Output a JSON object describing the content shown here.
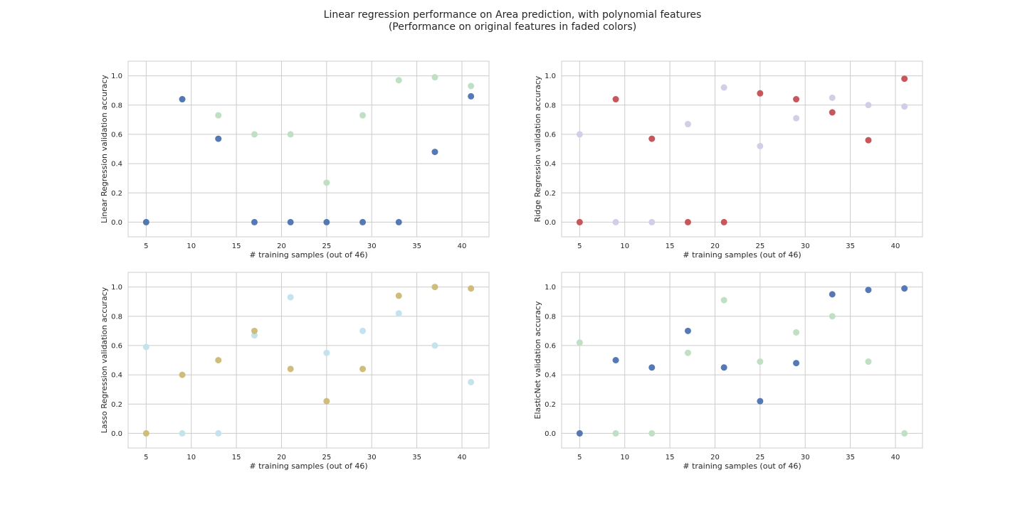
{
  "figure": {
    "title_line1": "Linear regression performance on Area prediction, with polynomial features",
    "title_line2": "(Performance on original features in faded colors)"
  },
  "chart_data": [
    {
      "type": "scatter",
      "xlabel": "# training samples (out of 46)",
      "ylabel": "Linear Regression validation accuracy",
      "xlim": [
        3,
        43
      ],
      "ylim": [
        -0.1,
        1.1
      ],
      "xticks": [
        5,
        10,
        15,
        20,
        25,
        30,
        35,
        40
      ],
      "yticks": [
        0.0,
        0.2,
        0.4,
        0.6,
        0.8,
        1.0
      ],
      "grid": true,
      "series": [
        {
          "role": "original features",
          "color": "#bfe0c2",
          "x": [
            5,
            9,
            13,
            17,
            21,
            25,
            29,
            33,
            37,
            41
          ],
          "y": [
            0.0,
            0.84,
            0.73,
            0.6,
            0.6,
            0.27,
            0.73,
            0.97,
            0.99,
            0.93
          ]
        },
        {
          "role": "polynomial features",
          "color": "#4c72b0",
          "x": [
            5,
            9,
            13,
            17,
            21,
            25,
            29,
            33,
            37,
            41
          ],
          "y": [
            0.0,
            0.84,
            0.57,
            0.0,
            0.0,
            0.0,
            0.0,
            0.0,
            0.48,
            0.86
          ]
        }
      ]
    },
    {
      "type": "scatter",
      "xlabel": "# training samples (out of 46)",
      "ylabel": "Ridge Regression validation accuracy",
      "xlim": [
        3,
        43
      ],
      "ylim": [
        -0.1,
        1.1
      ],
      "xticks": [
        5,
        10,
        15,
        20,
        25,
        30,
        35,
        40
      ],
      "yticks": [
        0.0,
        0.2,
        0.4,
        0.6,
        0.8,
        1.0
      ],
      "grid": true,
      "series": [
        {
          "role": "original features",
          "color": "#d4cde8",
          "x": [
            5,
            9,
            13,
            17,
            21,
            25,
            29,
            33,
            37,
            41
          ],
          "y": [
            0.6,
            0.0,
            0.0,
            0.67,
            0.92,
            0.52,
            0.71,
            0.85,
            0.8,
            0.79
          ]
        },
        {
          "role": "polynomial features",
          "color": "#c44e52",
          "x": [
            5,
            9,
            13,
            17,
            21,
            25,
            29,
            33,
            37,
            41
          ],
          "y": [
            0.0,
            0.84,
            0.57,
            0.0,
            0.0,
            0.88,
            0.84,
            0.75,
            0.56,
            0.98
          ]
        }
      ]
    },
    {
      "type": "scatter",
      "xlabel": "# training samples (out of 46)",
      "ylabel": "Lasso Regression validation accuracy",
      "xlim": [
        3,
        43
      ],
      "ylim": [
        -0.1,
        1.1
      ],
      "xticks": [
        5,
        10,
        15,
        20,
        25,
        30,
        35,
        40
      ],
      "yticks": [
        0.0,
        0.2,
        0.4,
        0.6,
        0.8,
        1.0
      ],
      "grid": true,
      "series": [
        {
          "role": "original features",
          "color": "#c3e3ef",
          "x": [
            5,
            9,
            13,
            17,
            21,
            25,
            29,
            33,
            37,
            41
          ],
          "y": [
            0.59,
            0.0,
            0.0,
            0.67,
            0.93,
            0.55,
            0.7,
            0.82,
            0.6,
            0.35
          ]
        },
        {
          "role": "polynomial features",
          "color": "#ccb974",
          "x": [
            5,
            9,
            13,
            17,
            21,
            25,
            29,
            33,
            37,
            41
          ],
          "y": [
            0.0,
            0.4,
            0.5,
            0.7,
            0.44,
            0.22,
            0.44,
            0.94,
            1.0,
            0.99
          ]
        }
      ]
    },
    {
      "type": "scatter",
      "xlabel": "# training samples (out of 46)",
      "ylabel": "ElasticNet validation accuracy",
      "xlim": [
        3,
        43
      ],
      "ylim": [
        -0.1,
        1.1
      ],
      "xticks": [
        5,
        10,
        15,
        20,
        25,
        30,
        35,
        40
      ],
      "yticks": [
        0.0,
        0.2,
        0.4,
        0.6,
        0.8,
        1.0
      ],
      "grid": true,
      "series": [
        {
          "role": "original features",
          "color": "#bfe0c2",
          "x": [
            5,
            9,
            13,
            17,
            21,
            25,
            29,
            33,
            37,
            41
          ],
          "y": [
            0.62,
            0.0,
            0.0,
            0.55,
            0.91,
            0.49,
            0.69,
            0.8,
            0.49,
            0.0
          ]
        },
        {
          "role": "polynomial features",
          "color": "#4c72b0",
          "x": [
            5,
            9,
            13,
            17,
            21,
            25,
            29,
            33,
            37,
            41
          ],
          "y": [
            0.0,
            0.5,
            0.45,
            0.7,
            0.45,
            0.22,
            0.48,
            0.95,
            0.98,
            0.99
          ]
        }
      ]
    }
  ]
}
